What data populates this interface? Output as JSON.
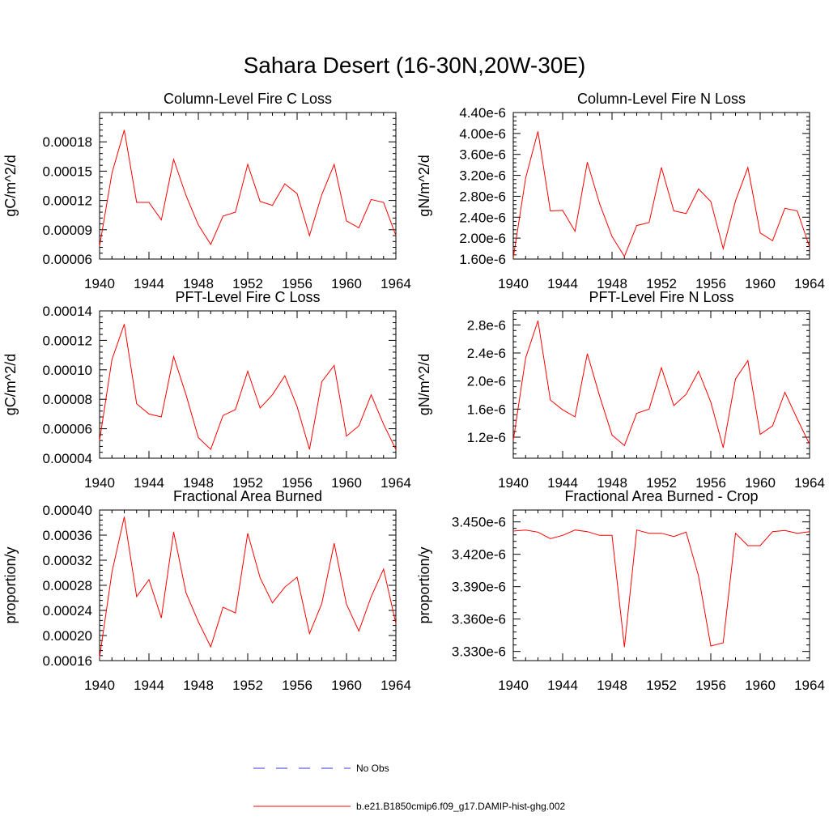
{
  "figure_title": "Sahara Desert (16-30N,20W-30E)",
  "legend": [
    {
      "label": "No Obs",
      "color": "#3333cc",
      "style": "dashed"
    },
    {
      "label": "b.e21.B1850cmip6.f09_g17.DAMIP-hist-ghg.002",
      "color": "#ff0000",
      "style": "solid"
    }
  ],
  "chart_data": [
    {
      "type": "line",
      "title": "Column-Level Fire C Loss",
      "ylabel": "gC/m^2/d",
      "xlim": [
        1940,
        1964
      ],
      "ylim": [
        6e-05,
        0.00021
      ],
      "xticks": [
        1940,
        1944,
        1948,
        1952,
        1956,
        1960,
        1964
      ],
      "yticks": [
        6e-05,
        9e-05,
        0.00012,
        0.00015,
        0.00018
      ],
      "ytick_labels": [
        "0.00006",
        "0.00009",
        "0.00012",
        "0.00015",
        "0.00018"
      ],
      "x": [
        1940,
        1941,
        1942,
        1943,
        1944,
        1945,
        1946,
        1947,
        1948,
        1949,
        1950,
        1951,
        1952,
        1953,
        1954,
        1955,
        1956,
        1957,
        1958,
        1959,
        1960,
        1961,
        1962,
        1963,
        1964
      ],
      "series": [
        {
          "values": [
            7.3e-05,
            0.000148,
            0.000192,
            0.000118,
            0.000118,
            0.0001,
            0.000162,
            0.000125,
            9.5e-05,
            7.5e-05,
            0.000104,
            0.000108,
            0.000157,
            0.000119,
            0.000115,
            0.000137,
            0.000127,
            8.4e-05,
            0.000126,
            0.000157,
            9.9e-05,
            9.2e-05,
            0.000121,
            0.000118,
            8.4e-05
          ],
          "color": "#ff0000"
        }
      ]
    },
    {
      "type": "line",
      "title": "Column-Level Fire N Loss",
      "ylabel": "gN/m^2/d",
      "xlim": [
        1940,
        1964
      ],
      "ylim": [
        1.6e-06,
        4.4e-06
      ],
      "xticks": [
        1940,
        1944,
        1948,
        1952,
        1956,
        1960,
        1964
      ],
      "yticks": [
        1.6e-06,
        2e-06,
        2.4e-06,
        2.8e-06,
        3.2e-06,
        3.6e-06,
        4e-06,
        4.4e-06
      ],
      "ytick_labels": [
        "1.60e-6",
        "2.00e-6",
        "2.40e-6",
        "2.80e-6",
        "3.20e-6",
        "3.60e-6",
        "4.00e-6",
        "4.40e-6"
      ],
      "x": [
        1940,
        1941,
        1942,
        1943,
        1944,
        1945,
        1946,
        1947,
        1948,
        1949,
        1950,
        1951,
        1952,
        1953,
        1954,
        1955,
        1956,
        1957,
        1958,
        1959,
        1960,
        1961,
        1962,
        1963,
        1964
      ],
      "series": [
        {
          "values": [
            1.62e-06,
            3.15e-06,
            4.04e-06,
            2.52e-06,
            2.53e-06,
            2.13e-06,
            3.45e-06,
            2.65e-06,
            2.03e-06,
            1.65e-06,
            2.24e-06,
            2.3e-06,
            3.35e-06,
            2.52e-06,
            2.47e-06,
            2.94e-06,
            2.7e-06,
            1.8e-06,
            2.71e-06,
            3.35e-06,
            2.1e-06,
            1.95e-06,
            2.57e-06,
            2.52e-06,
            1.83e-06
          ],
          "color": "#ff0000"
        }
      ]
    },
    {
      "type": "line",
      "title": "PFT-Level Fire C Loss",
      "ylabel": "gC/m^2/d",
      "xlim": [
        1940,
        1964
      ],
      "ylim": [
        4e-05,
        0.00014
      ],
      "xticks": [
        1940,
        1944,
        1948,
        1952,
        1956,
        1960,
        1964
      ],
      "yticks": [
        4e-05,
        6e-05,
        8e-05,
        0.0001,
        0.00012,
        0.00014
      ],
      "ytick_labels": [
        "0.00004",
        "0.00006",
        "0.00008",
        "0.00010",
        "0.00012",
        "0.00014"
      ],
      "x": [
        1940,
        1941,
        1942,
        1943,
        1944,
        1945,
        1946,
        1947,
        1948,
        1949,
        1950,
        1951,
        1952,
        1953,
        1954,
        1955,
        1956,
        1957,
        1958,
        1959,
        1960,
        1961,
        1962,
        1963,
        1964
      ],
      "series": [
        {
          "values": [
            5.2e-05,
            0.000107,
            0.000131,
            7.7e-05,
            7e-05,
            6.8e-05,
            0.000109,
            8.3e-05,
            5.4e-05,
            4.6e-05,
            6.9e-05,
            7.3e-05,
            9.9e-05,
            7.4e-05,
            8.3e-05,
            9.6e-05,
            7.5e-05,
            4.6e-05,
            9.2e-05,
            0.000103,
            5.5e-05,
            6.2e-05,
            8.3e-05,
            6.3e-05,
            4.6e-05
          ],
          "color": "#ff0000"
        }
      ]
    },
    {
      "type": "line",
      "title": "PFT-Level Fire N Loss",
      "ylabel": "gN/m^2/d",
      "xlim": [
        1940,
        1964
      ],
      "ylim": [
        9e-07,
        3e-06
      ],
      "xticks": [
        1940,
        1944,
        1948,
        1952,
        1956,
        1960,
        1964
      ],
      "yticks": [
        1.2e-06,
        1.6e-06,
        2e-06,
        2.4e-06,
        2.8e-06
      ],
      "ytick_labels": [
        "1.2e-6",
        "1.6e-6",
        "2.0e-6",
        "2.4e-6",
        "2.8e-6"
      ],
      "x": [
        1940,
        1941,
        1942,
        1943,
        1944,
        1945,
        1946,
        1947,
        1948,
        1949,
        1950,
        1951,
        1952,
        1953,
        1954,
        1955,
        1956,
        1957,
        1958,
        1959,
        1960,
        1961,
        1962,
        1963,
        1964
      ],
      "series": [
        {
          "values": [
            1.15e-06,
            2.33e-06,
            2.86e-06,
            1.73e-06,
            1.59e-06,
            1.49e-06,
            2.39e-06,
            1.78e-06,
            1.23e-06,
            1.08e-06,
            1.54e-06,
            1.6e-06,
            2.19e-06,
            1.65e-06,
            1.81e-06,
            2.14e-06,
            1.7e-06,
            1.05e-06,
            2.03e-06,
            2.29e-06,
            1.24e-06,
            1.36e-06,
            1.84e-06,
            1.46e-06,
            1.1e-06
          ],
          "color": "#ff0000"
        }
      ]
    },
    {
      "type": "line",
      "title": "Fractional Area Burned",
      "ylabel": "proportion/y",
      "xlim": [
        1940,
        1964
      ],
      "ylim": [
        0.00016,
        0.0004
      ],
      "xticks": [
        1940,
        1944,
        1948,
        1952,
        1956,
        1960,
        1964
      ],
      "yticks": [
        0.00016,
        0.0002,
        0.00024,
        0.00028,
        0.00032,
        0.00036,
        0.0004
      ],
      "ytick_labels": [
        "0.00016",
        "0.00020",
        "0.00024",
        "0.00028",
        "0.00032",
        "0.00036",
        "0.00040"
      ],
      "x": [
        1940,
        1941,
        1942,
        1943,
        1944,
        1945,
        1946,
        1947,
        1948,
        1949,
        1950,
        1951,
        1952,
        1953,
        1954,
        1955,
        1956,
        1957,
        1958,
        1959,
        1960,
        1961,
        1962,
        1963,
        1964
      ],
      "series": [
        {
          "values": [
            0.000165,
            0.000301,
            0.000389,
            0.000262,
            0.000289,
            0.000228,
            0.000365,
            0.000268,
            0.000222,
            0.000182,
            0.000245,
            0.000236,
            0.000363,
            0.000292,
            0.000252,
            0.000277,
            0.000293,
            0.000203,
            0.000251,
            0.000347,
            0.00025,
            0.000207,
            0.000262,
            0.000306,
            0.000219
          ],
          "color": "#ff0000"
        }
      ]
    },
    {
      "type": "line",
      "title": "Fractional Area Burned - Crop",
      "ylabel": "proportion/y",
      "xlim": [
        1940,
        1964
      ],
      "ylim": [
        3.3215e-06,
        3.461e-06
      ],
      "xticks": [
        1940,
        1944,
        1948,
        1952,
        1956,
        1960,
        1964
      ],
      "yticks": [
        3.33e-06,
        3.36e-06,
        3.39e-06,
        3.42e-06,
        3.45e-06
      ],
      "ytick_labels": [
        "3.330e-6",
        "3.360e-6",
        "3.390e-6",
        "3.420e-6",
        "3.450e-6"
      ],
      "x": [
        1940,
        1941,
        1942,
        1943,
        1944,
        1945,
        1946,
        1947,
        1948,
        1949,
        1950,
        1951,
        1952,
        1953,
        1954,
        1955,
        1956,
        1957,
        1958,
        1959,
        1960,
        1961,
        1962,
        1963,
        1964
      ],
      "series": [
        {
          "values": [
            3.4415e-06,
            3.4425e-06,
            3.4405e-06,
            3.4345e-06,
            3.4375e-06,
            3.4425e-06,
            3.441e-06,
            3.4375e-06,
            3.4375e-06,
            3.334e-06,
            3.4425e-06,
            3.4395e-06,
            3.4395e-06,
            3.4365e-06,
            3.4405e-06,
            3.4e-06,
            3.335e-06,
            3.338e-06,
            3.4395e-06,
            3.428e-06,
            3.428e-06,
            3.441e-06,
            3.442e-06,
            3.4395e-06,
            3.441e-06
          ],
          "color": "#ff0000"
        }
      ]
    }
  ]
}
